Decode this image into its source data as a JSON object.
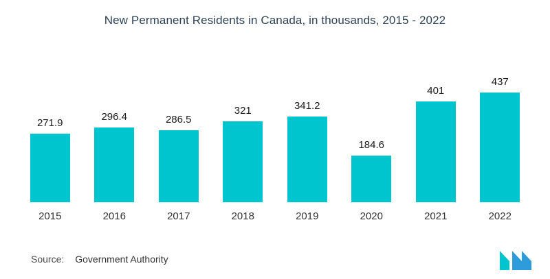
{
  "title": "New Permanent Residents in Canada, in thousands, 2015 - 2022",
  "source": {
    "label": "Source:",
    "value": "Government Authority"
  },
  "colors": {
    "bar": "#00C5CE",
    "title": "#2E4257",
    "value_label": "#1A1A1A",
    "axis_label": "#333333",
    "source_text": "#4A4A4A",
    "logo_teal": "#00C5CE",
    "logo_blue": "#2E9BDB"
  },
  "chart_data": {
    "type": "bar",
    "title": "New Permanent Residents in Canada, in thousands, 2015 - 2022",
    "categories": [
      "2015",
      "2016",
      "2017",
      "2018",
      "2019",
      "2020",
      "2021",
      "2022"
    ],
    "values": [
      271.9,
      296.4,
      286.5,
      321,
      341.2,
      184.6,
      401,
      437
    ],
    "xlabel": "",
    "ylabel": "",
    "ylim": [
      0,
      450
    ],
    "grid": false,
    "legend": false,
    "bar_color": "#00C5CE"
  }
}
